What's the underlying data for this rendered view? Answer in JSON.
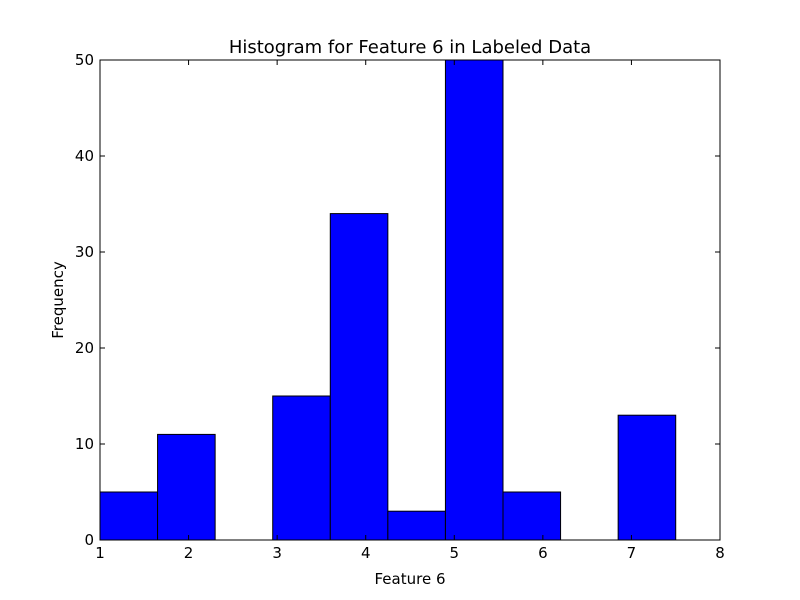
{
  "chart_data": {
    "type": "bar",
    "title": "Histogram for Feature 6 in Labeled Data",
    "xlabel": "Feature 6",
    "ylabel": "Frequency",
    "xlim": [
      1,
      8
    ],
    "ylim": [
      0,
      50
    ],
    "xticks": [
      "1",
      "2",
      "3",
      "4",
      "5",
      "6",
      "7",
      "8"
    ],
    "yticks": [
      "0",
      "10",
      "20",
      "30",
      "40",
      "50"
    ],
    "bar_color": "#0000ff",
    "grid": false,
    "bins": [
      {
        "x0": 1.0,
        "x1": 1.65,
        "value": 5
      },
      {
        "x0": 1.65,
        "x1": 2.3,
        "value": 11
      },
      {
        "x0": 2.3,
        "x1": 2.95,
        "value": 0
      },
      {
        "x0": 2.95,
        "x1": 3.6,
        "value": 15
      },
      {
        "x0": 3.6,
        "x1": 4.25,
        "value": 34
      },
      {
        "x0": 4.25,
        "x1": 4.9,
        "value": 3
      },
      {
        "x0": 4.9,
        "x1": 5.55,
        "value": 50
      },
      {
        "x0": 5.55,
        "x1": 6.2,
        "value": 5
      },
      {
        "x0": 6.2,
        "x1": 6.85,
        "value": 0
      },
      {
        "x0": 6.85,
        "x1": 7.5,
        "value": 13
      }
    ]
  }
}
